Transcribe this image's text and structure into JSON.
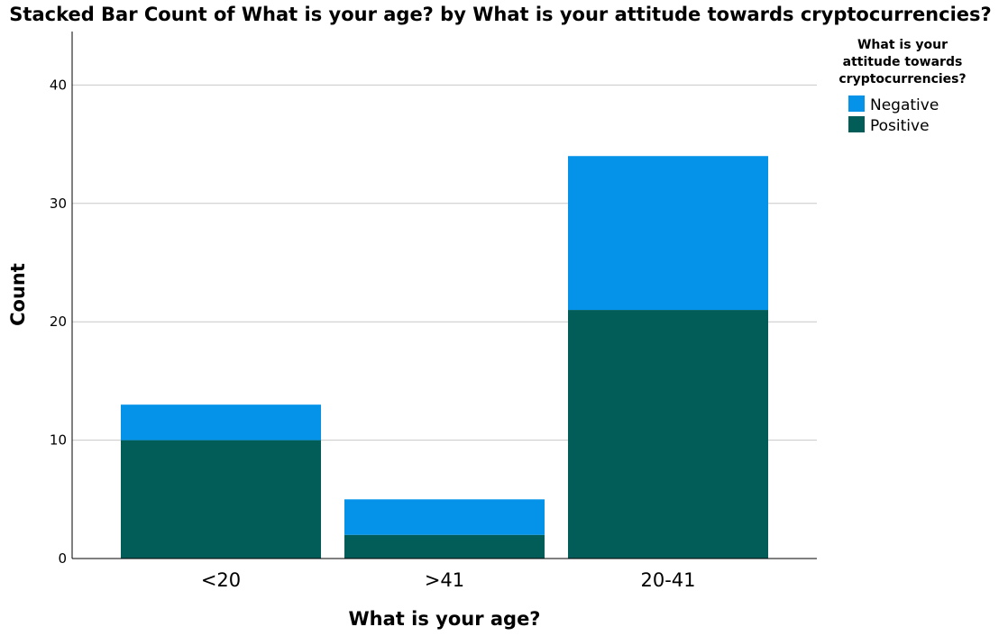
{
  "chart_data": {
    "type": "bar",
    "stacked": true,
    "title": "Stacked Bar Count of What is your age? by What is your attitude towards cryptocurrencies?",
    "xlabel": "What is your age?",
    "ylabel": "Count",
    "categories": [
      "<20",
      ">41",
      "20-41"
    ],
    "series": [
      {
        "name": "Positive",
        "values": [
          10,
          2,
          21
        ],
        "color": "#025c58"
      },
      {
        "name": "Negative",
        "values": [
          3,
          3,
          13
        ],
        "color": "#0493e8"
      }
    ],
    "ylim": [
      0,
      44
    ],
    "yticks": [
      0,
      10,
      20,
      30,
      40
    ],
    "grid": true,
    "legend": {
      "title_lines": [
        "What is your",
        "attitude towards",
        "cryptocurrencies?"
      ],
      "entries": [
        "Negative",
        "Positive"
      ],
      "position": "top-right"
    }
  }
}
